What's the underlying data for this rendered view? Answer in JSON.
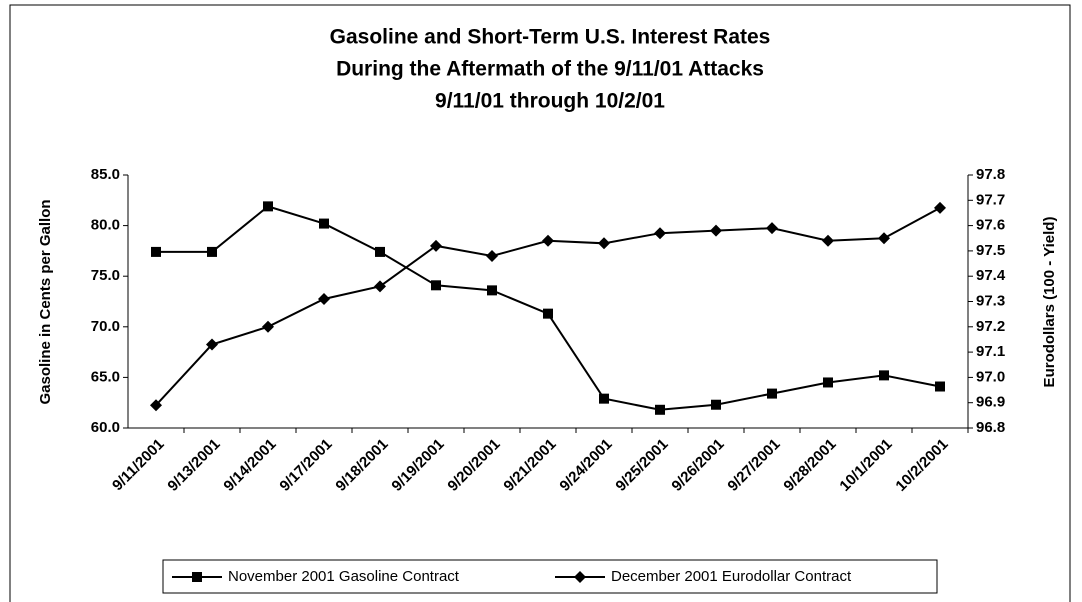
{
  "chart_data": {
    "type": "line",
    "title": [
      "Gasoline and Short-Term U.S. Interest Rates",
      "During the Aftermath of the 9/11/01 Attacks",
      "9/11/01 through 10/2/01"
    ],
    "y_label": "Gasoline in Cents per Gallon",
    "y2_label": "Eurodollars (100 - Yield)",
    "categories": [
      "9/11/2001",
      "9/13/2001",
      "9/14/2001",
      "9/17/2001",
      "9/18/2001",
      "9/19/2001",
      "9/20/2001",
      "9/21/2001",
      "9/24/2001",
      "9/25/2001",
      "9/26/2001",
      "9/27/2001",
      "9/28/2001",
      "10/1/2001",
      "10/2/2001"
    ],
    "series": [
      {
        "name": "November 2001 Gasoline Contract",
        "color": "#000000",
        "marker": "square",
        "axis": "y",
        "values": [
          77.4,
          77.4,
          81.9,
          80.2,
          77.4,
          74.1,
          73.6,
          71.3,
          62.9,
          61.8,
          62.3,
          63.4,
          64.5,
          65.2,
          64.1
        ]
      },
      {
        "name": "December 2001 Eurodollar Contract",
        "color": "#000000",
        "marker": "diamond",
        "axis": "y2",
        "values": [
          96.89,
          97.13,
          97.2,
          97.31,
          97.36,
          97.52,
          97.48,
          97.54,
          97.53,
          97.57,
          97.58,
          97.59,
          97.54,
          97.55,
          97.67
        ]
      }
    ],
    "ylim": [
      60,
      85
    ],
    "yticks": [
      {
        "value": 60,
        "label": "60.0"
      },
      {
        "value": 65,
        "label": "65.0"
      },
      {
        "value": 70,
        "label": "70.0"
      },
      {
        "value": 75,
        "label": "75.0"
      },
      {
        "value": 80,
        "label": "80.0"
      },
      {
        "value": 85,
        "label": "85.0"
      }
    ],
    "y2lim": [
      96.8,
      97.8
    ],
    "y2ticks": [
      96.8,
      96.9,
      {
        "value": 97,
        "label": "97.0"
      },
      97.1,
      97.2,
      97.3,
      97.4,
      97.5,
      97.6,
      97.7,
      97.8
    ],
    "grid": false,
    "legend": "bottom"
  }
}
